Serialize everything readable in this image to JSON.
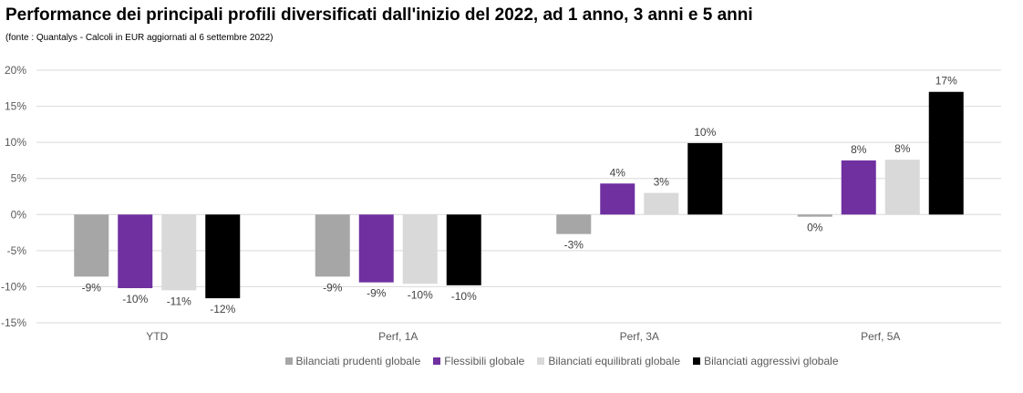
{
  "title": "Performance dei principali profili diversificati dall'inizio del 2022, ad 1 anno, 3 anni e 5 anni",
  "subtitle": "(fonte : Quantalys - Calcoli in EUR aggiornati al 6 settembre 2022)",
  "chart_data": {
    "type": "bar",
    "categories": [
      "YTD",
      "Perf, 1A",
      "Perf, 3A",
      "Perf, 5A"
    ],
    "ylim": [
      -15,
      20
    ],
    "yticks": [
      "20%",
      "15%",
      "10%",
      "5%",
      "0%",
      "-5%",
      "-10%",
      "-15%"
    ],
    "grid": true,
    "legend_position": "bottom",
    "series": [
      {
        "name": "Bilanciati prudenti globale",
        "color": "#a6a6a6",
        "values": [
          -8.6,
          -8.6,
          -2.7,
          -0.3
        ],
        "labels": [
          "-9%",
          "-9%",
          "-3%",
          "0%"
        ]
      },
      {
        "name": "Flessibili globale",
        "color": "#7030a0",
        "values": [
          -10.2,
          -9.4,
          4.3,
          7.5
        ],
        "labels": [
          "-10%",
          "-9%",
          "4%",
          "8%"
        ]
      },
      {
        "name": "Bilanciati equilibrati globale",
        "color": "#d9d9d9",
        "values": [
          -10.5,
          -9.6,
          3.0,
          7.6
        ],
        "labels": [
          "-11%",
          "-10%",
          "3%",
          "8%"
        ]
      },
      {
        "name": "Bilanciati aggressivi globale",
        "color": "#000000",
        "values": [
          -11.6,
          -9.8,
          9.9,
          17.0
        ],
        "labels": [
          "-12%",
          "-10%",
          "10%",
          "17%"
        ]
      }
    ]
  }
}
